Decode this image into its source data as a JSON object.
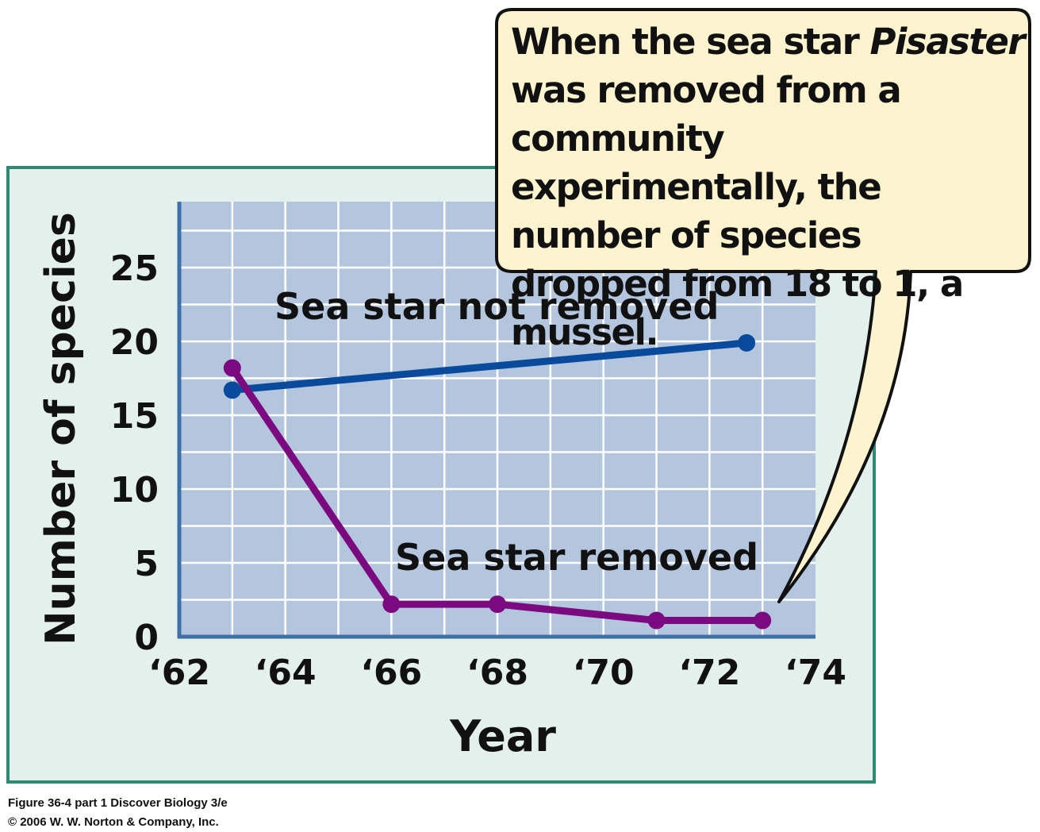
{
  "chart_data": {
    "type": "line",
    "xlabel": "Year",
    "ylabel": "Number of species",
    "xlim": [
      1962,
      1974
    ],
    "ylim": [
      0,
      28
    ],
    "x_ticks": [
      1962,
      1964,
      1966,
      1968,
      1970,
      1972,
      1974
    ],
    "x_tick_labels": [
      "‘62",
      "‘64",
      "‘66",
      "‘68",
      "‘70",
      "‘72",
      "‘74"
    ],
    "y_ticks": [
      0,
      5,
      10,
      15,
      20,
      25
    ],
    "y_tick_labels": [
      "0",
      "5",
      "10",
      "15",
      "20",
      "25"
    ],
    "grid": true,
    "series": [
      {
        "name": "Sea star not removed",
        "color": "#0a4a9c",
        "x": [
          1963,
          1972.7
        ],
        "y": [
          16.7,
          19.9
        ]
      },
      {
        "name": "Sea star removed",
        "color": "#7b0a80",
        "x": [
          1963,
          1966,
          1968,
          1971,
          1973
        ],
        "y": [
          18.2,
          2.2,
          2.2,
          1.1,
          1.1
        ]
      }
    ]
  },
  "callout": {
    "prefix": "When the sea star ",
    "italic": "Pisaster",
    "suffix": " was removed from a community experimentally, the number of species dropped from 18 to 1, a mussel."
  },
  "caption": {
    "line1": "Figure 36-4 part 1  Discover Biology 3/e",
    "line2": "© 2006 W. W. Norton & Company, Inc."
  },
  "colors": {
    "panel_bg": "#e4f0ec",
    "panel_border": "#2e8b73",
    "plot_bg": "#b3c6de",
    "axis": "#3f70a8",
    "callout_bg": "#fdf3cf"
  }
}
